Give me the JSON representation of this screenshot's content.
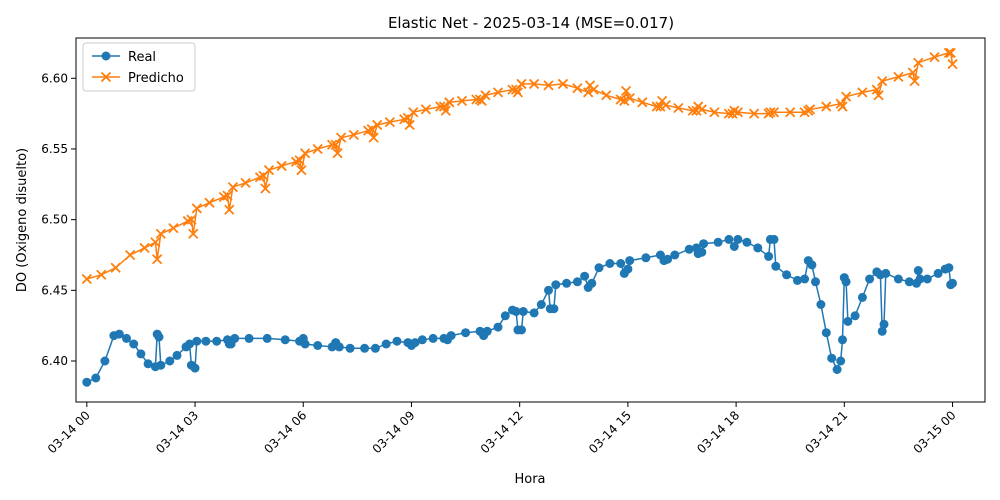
{
  "chart_data": {
    "type": "line",
    "title": "Elastic Net - 2025-03-14 (MSE=0.017)",
    "xlabel": "Hora",
    "ylabel": "DO (Oxigeno disuelto)",
    "xlim": [
      -0.3,
      24.9
    ],
    "ylim": [
      6.371,
      6.6285
    ],
    "x_ticks": [
      {
        "value": 0,
        "label": "03-14 00"
      },
      {
        "value": 3,
        "label": "03-14 03"
      },
      {
        "value": 6,
        "label": "03-14 06"
      },
      {
        "value": 9,
        "label": "03-14 09"
      },
      {
        "value": 12,
        "label": "03-14 12"
      },
      {
        "value": 15,
        "label": "03-14 15"
      },
      {
        "value": 18,
        "label": "03-14 18"
      },
      {
        "value": 21,
        "label": "03-14 21"
      },
      {
        "value": 24,
        "label": "03-15 00"
      }
    ],
    "y_ticks": [
      {
        "value": 6.4,
        "label": "6.40"
      },
      {
        "value": 6.45,
        "label": "6.45"
      },
      {
        "value": 6.5,
        "label": "6.50"
      },
      {
        "value": 6.55,
        "label": "6.55"
      },
      {
        "value": 6.6,
        "label": "6.60"
      }
    ],
    "grid": false,
    "legend_position": "top-left",
    "series": [
      {
        "name": "Real",
        "color": "#1f77b4",
        "marker": "circle",
        "points": [
          [
            0.0,
            6.385
          ],
          [
            0.25,
            6.388
          ],
          [
            0.5,
            6.4
          ],
          [
            0.75,
            6.418
          ],
          [
            0.9,
            6.419
          ],
          [
            1.1,
            6.416
          ],
          [
            1.3,
            6.412
          ],
          [
            1.5,
            6.405
          ],
          [
            1.7,
            6.398
          ],
          [
            1.9,
            6.396
          ],
          [
            1.95,
            6.419
          ],
          [
            2.0,
            6.417
          ],
          [
            2.05,
            6.397
          ],
          [
            2.3,
            6.4
          ],
          [
            2.5,
            6.404
          ],
          [
            2.75,
            6.41
          ],
          [
            2.85,
            6.412
          ],
          [
            2.9,
            6.397
          ],
          [
            3.0,
            6.395
          ],
          [
            3.05,
            6.414
          ],
          [
            3.3,
            6.414
          ],
          [
            3.6,
            6.414
          ],
          [
            3.9,
            6.415
          ],
          [
            3.95,
            6.412
          ],
          [
            4.0,
            6.412
          ],
          [
            4.1,
            6.416
          ],
          [
            4.5,
            6.416
          ],
          [
            5.0,
            6.416
          ],
          [
            5.5,
            6.415
          ],
          [
            5.9,
            6.414
          ],
          [
            6.0,
            6.416
          ],
          [
            6.05,
            6.412
          ],
          [
            6.4,
            6.411
          ],
          [
            6.8,
            6.41
          ],
          [
            6.9,
            6.413
          ],
          [
            7.0,
            6.41
          ],
          [
            7.3,
            6.409
          ],
          [
            7.7,
            6.409
          ],
          [
            8.0,
            6.409
          ],
          [
            8.3,
            6.412
          ],
          [
            8.6,
            6.414
          ],
          [
            8.9,
            6.413
          ],
          [
            9.0,
            6.411
          ],
          [
            9.1,
            6.413
          ],
          [
            9.3,
            6.415
          ],
          [
            9.6,
            6.416
          ],
          [
            9.9,
            6.416
          ],
          [
            10.0,
            6.415
          ],
          [
            10.1,
            6.418
          ],
          [
            10.5,
            6.42
          ],
          [
            10.9,
            6.421
          ],
          [
            11.0,
            6.418
          ],
          [
            11.1,
            6.421
          ],
          [
            11.4,
            6.424
          ],
          [
            11.6,
            6.432
          ],
          [
            11.8,
            6.436
          ],
          [
            11.9,
            6.435
          ],
          [
            11.95,
            6.422
          ],
          [
            12.05,
            6.422
          ],
          [
            12.1,
            6.435
          ],
          [
            12.4,
            6.434
          ],
          [
            12.6,
            6.44
          ],
          [
            12.8,
            6.45
          ],
          [
            12.85,
            6.437
          ],
          [
            12.95,
            6.437
          ],
          [
            13.0,
            6.454
          ],
          [
            13.3,
            6.455
          ],
          [
            13.6,
            6.456
          ],
          [
            13.8,
            6.46
          ],
          [
            13.9,
            6.452
          ],
          [
            14.0,
            6.455
          ],
          [
            14.2,
            6.466
          ],
          [
            14.5,
            6.469
          ],
          [
            14.8,
            6.469
          ],
          [
            14.9,
            6.462
          ],
          [
            15.0,
            6.465
          ],
          [
            15.05,
            6.471
          ],
          [
            15.5,
            6.473
          ],
          [
            15.9,
            6.475
          ],
          [
            16.0,
            6.471
          ],
          [
            16.1,
            6.472
          ],
          [
            16.3,
            6.475
          ],
          [
            16.7,
            6.479
          ],
          [
            16.9,
            6.48
          ],
          [
            16.95,
            6.476
          ],
          [
            17.05,
            6.477
          ],
          [
            17.1,
            6.483
          ],
          [
            17.5,
            6.484
          ],
          [
            17.8,
            6.486
          ],
          [
            17.95,
            6.481
          ],
          [
            18.05,
            6.486
          ],
          [
            18.3,
            6.484
          ],
          [
            18.6,
            6.48
          ],
          [
            18.9,
            6.474
          ],
          [
            18.95,
            6.486
          ],
          [
            19.05,
            6.486
          ],
          [
            19.1,
            6.467
          ],
          [
            19.4,
            6.461
          ],
          [
            19.7,
            6.457
          ],
          [
            19.9,
            6.458
          ],
          [
            20.0,
            6.471
          ],
          [
            20.1,
            6.468
          ],
          [
            20.2,
            6.456
          ],
          [
            20.35,
            6.44
          ],
          [
            20.5,
            6.42
          ],
          [
            20.65,
            6.402
          ],
          [
            20.8,
            6.394
          ],
          [
            20.9,
            6.4
          ],
          [
            20.95,
            6.415
          ],
          [
            21.0,
            6.459
          ],
          [
            21.05,
            6.456
          ],
          [
            21.1,
            6.428
          ],
          [
            21.3,
            6.432
          ],
          [
            21.5,
            6.445
          ],
          [
            21.7,
            6.458
          ],
          [
            21.9,
            6.463
          ],
          [
            22.0,
            6.461
          ],
          [
            22.05,
            6.421
          ],
          [
            22.1,
            6.426
          ],
          [
            22.15,
            6.462
          ],
          [
            22.5,
            6.458
          ],
          [
            22.8,
            6.456
          ],
          [
            23.0,
            6.455
          ],
          [
            23.05,
            6.464
          ],
          [
            23.1,
            6.458
          ],
          [
            23.3,
            6.458
          ],
          [
            23.6,
            6.462
          ],
          [
            23.8,
            6.465
          ],
          [
            23.9,
            6.466
          ],
          [
            23.95,
            6.454
          ],
          [
            24.0,
            6.455
          ]
        ]
      },
      {
        "name": "Predicho",
        "color": "#ff7f0e",
        "marker": "x",
        "points": [
          [
            0.0,
            6.458
          ],
          [
            0.4,
            6.461
          ],
          [
            0.8,
            6.466
          ],
          [
            1.2,
            6.475
          ],
          [
            1.6,
            6.48
          ],
          [
            1.9,
            6.484
          ],
          [
            1.95,
            6.472
          ],
          [
            2.05,
            6.49
          ],
          [
            2.4,
            6.494
          ],
          [
            2.8,
            6.499
          ],
          [
            2.9,
            6.5
          ],
          [
            2.95,
            6.49
          ],
          [
            3.05,
            6.508
          ],
          [
            3.4,
            6.512
          ],
          [
            3.8,
            6.516
          ],
          [
            3.9,
            6.517
          ],
          [
            3.95,
            6.507
          ],
          [
            4.05,
            6.523
          ],
          [
            4.4,
            6.526
          ],
          [
            4.8,
            6.53
          ],
          [
            4.9,
            6.531
          ],
          [
            4.95,
            6.522
          ],
          [
            5.05,
            6.535
          ],
          [
            5.4,
            6.538
          ],
          [
            5.8,
            6.541
          ],
          [
            5.9,
            6.542
          ],
          [
            5.95,
            6.535
          ],
          [
            6.05,
            6.547
          ],
          [
            6.4,
            6.55
          ],
          [
            6.8,
            6.553
          ],
          [
            6.9,
            6.553
          ],
          [
            6.95,
            6.547
          ],
          [
            7.05,
            6.558
          ],
          [
            7.4,
            6.56
          ],
          [
            7.8,
            6.563
          ],
          [
            7.9,
            6.564
          ],
          [
            7.95,
            6.558
          ],
          [
            8.05,
            6.567
          ],
          [
            8.4,
            6.569
          ],
          [
            8.8,
            6.571
          ],
          [
            8.9,
            6.572
          ],
          [
            8.95,
            6.567
          ],
          [
            9.05,
            6.576
          ],
          [
            9.4,
            6.578
          ],
          [
            9.8,
            6.58
          ],
          [
            9.9,
            6.58
          ],
          [
            9.95,
            6.577
          ],
          [
            10.05,
            6.583
          ],
          [
            10.4,
            6.584
          ],
          [
            10.8,
            6.585
          ],
          [
            10.9,
            6.585
          ],
          [
            10.95,
            6.584
          ],
          [
            11.05,
            6.588
          ],
          [
            11.4,
            6.59
          ],
          [
            11.8,
            6.592
          ],
          [
            11.9,
            6.592
          ],
          [
            11.95,
            6.59
          ],
          [
            12.05,
            6.596
          ],
          [
            12.4,
            6.596
          ],
          [
            12.8,
            6.595
          ],
          [
            13.2,
            6.596
          ],
          [
            13.6,
            6.593
          ],
          [
            13.9,
            6.59
          ],
          [
            13.95,
            6.595
          ],
          [
            14.05,
            6.592
          ],
          [
            14.4,
            6.588
          ],
          [
            14.8,
            6.585
          ],
          [
            14.9,
            6.584
          ],
          [
            14.95,
            6.591
          ],
          [
            15.05,
            6.586
          ],
          [
            15.4,
            6.583
          ],
          [
            15.8,
            6.58
          ],
          [
            15.9,
            6.58
          ],
          [
            15.95,
            6.584
          ],
          [
            16.05,
            6.581
          ],
          [
            16.4,
            6.579
          ],
          [
            16.8,
            6.577
          ],
          [
            16.9,
            6.577
          ],
          [
            16.95,
            6.58
          ],
          [
            17.05,
            6.578
          ],
          [
            17.4,
            6.576
          ],
          [
            17.8,
            6.575
          ],
          [
            17.9,
            6.575
          ],
          [
            17.95,
            6.577
          ],
          [
            18.05,
            6.576
          ],
          [
            18.5,
            6.575
          ],
          [
            18.9,
            6.575
          ],
          [
            18.95,
            6.576
          ],
          [
            19.05,
            6.576
          ],
          [
            19.5,
            6.576
          ],
          [
            19.9,
            6.576
          ],
          [
            20.0,
            6.577
          ],
          [
            20.05,
            6.578
          ],
          [
            20.5,
            6.58
          ],
          [
            20.9,
            6.582
          ],
          [
            20.95,
            6.58
          ],
          [
            21.05,
            6.587
          ],
          [
            21.5,
            6.59
          ],
          [
            21.9,
            6.592
          ],
          [
            21.95,
            6.588
          ],
          [
            22.05,
            6.598
          ],
          [
            22.5,
            6.601
          ],
          [
            22.9,
            6.604
          ],
          [
            22.95,
            6.598
          ],
          [
            23.05,
            6.611
          ],
          [
            23.5,
            6.615
          ],
          [
            23.9,
            6.618
          ],
          [
            23.95,
            6.618
          ],
          [
            24.0,
            6.61
          ]
        ]
      }
    ]
  }
}
